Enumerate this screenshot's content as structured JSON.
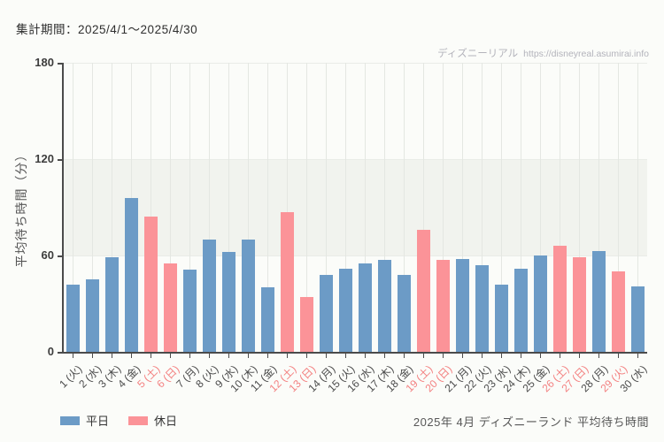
{
  "header": {
    "title": "集計期間：2025/4/1～2025/4/30"
  },
  "watermark": {
    "brand": "ディズニーリアル",
    "url": "https://disneyreal.asumirai.info"
  },
  "legend": [
    {
      "label": "平日",
      "type": "weekday",
      "color": "#6c9bc6"
    },
    {
      "label": "休日",
      "type": "holiday",
      "color": "#fb9398"
    }
  ],
  "footer": {
    "caption": "2025年 4月 ディズニーランド 平均待ち時間"
  },
  "chart_data": {
    "type": "bar",
    "title": "2025年 4月 ディズニーランド 平均待ち時間",
    "subtitle": "集計期間：2025/4/1～2025/4/30",
    "xlabel": "",
    "ylabel": "平均待ち時間（分）",
    "ylim": [
      0,
      180
    ],
    "yticks": [
      0,
      60,
      120,
      180
    ],
    "legend_position": "bottom-left",
    "grid": {
      "vertical": true,
      "horizontal": false,
      "band_from": 60,
      "band_to": 120
    },
    "categories": [
      "1 (火)",
      "2 (水)",
      "3 (木)",
      "4 (金)",
      "5 (土)",
      "6 (日)",
      "7 (月)",
      "8 (火)",
      "9 (水)",
      "10 (木)",
      "11 (金)",
      "12 (土)",
      "13 (日)",
      "14 (月)",
      "15 (火)",
      "16 (水)",
      "17 (木)",
      "18 (金)",
      "19 (土)",
      "20 (日)",
      "21 (月)",
      "22 (火)",
      "23 (水)",
      "24 (木)",
      "25 (金)",
      "26 (土)",
      "27 (日)",
      "28 (月)",
      "29 (火)",
      "30 (水)"
    ],
    "values": [
      42,
      45,
      59,
      96,
      84,
      55,
      51,
      70,
      62,
      70,
      40,
      87,
      34,
      48,
      52,
      55,
      57,
      48,
      76,
      57,
      58,
      54,
      42,
      52,
      60,
      66,
      59,
      63,
      50,
      41
    ],
    "day_types": [
      "weekday",
      "weekday",
      "weekday",
      "weekday",
      "holiday",
      "holiday",
      "weekday",
      "weekday",
      "weekday",
      "weekday",
      "weekday",
      "holiday",
      "holiday",
      "weekday",
      "weekday",
      "weekday",
      "weekday",
      "weekday",
      "holiday",
      "holiday",
      "weekday",
      "weekday",
      "weekday",
      "weekday",
      "weekday",
      "holiday",
      "holiday",
      "weekday",
      "holiday",
      "weekday"
    ],
    "series_legend": [
      "平日",
      "休日"
    ],
    "colors": {
      "weekday_bar": "#6c9bc6",
      "holiday_bar": "#fb9398",
      "band": "#f1f3ee",
      "gridline": "#e4e7e2",
      "axis": "#4b4b4b",
      "weekday_tick_label": "#4a4a4a",
      "holiday_tick_label": "#f38181"
    }
  }
}
